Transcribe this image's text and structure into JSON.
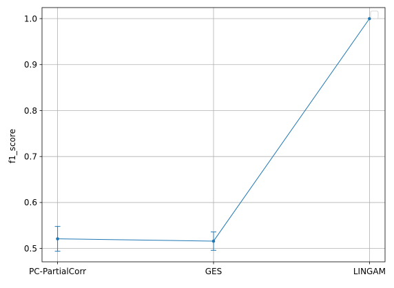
{
  "chart_data": {
    "type": "line",
    "categories": [
      "PC-PartialCorr",
      "GES",
      "LINGAM"
    ],
    "series": [
      {
        "values": [
          0.521,
          0.516,
          1.0
        ],
        "error_low": [
          0.494,
          0.496,
          1.0
        ],
        "error_high": [
          0.548,
          0.536,
          1.0
        ],
        "color": "#1f77b4"
      }
    ],
    "title": "",
    "xlabel": "",
    "ylabel": "f1_score",
    "ylim": [
      0.471,
      1.024
    ],
    "yticks": [
      0.5,
      0.6,
      0.7,
      0.8,
      0.9,
      1.0
    ],
    "ytick_labels": [
      "0.5",
      "0.6",
      "0.7",
      "0.8",
      "0.9",
      "1.0"
    ],
    "grid": true,
    "legend": "top-right, empty"
  }
}
